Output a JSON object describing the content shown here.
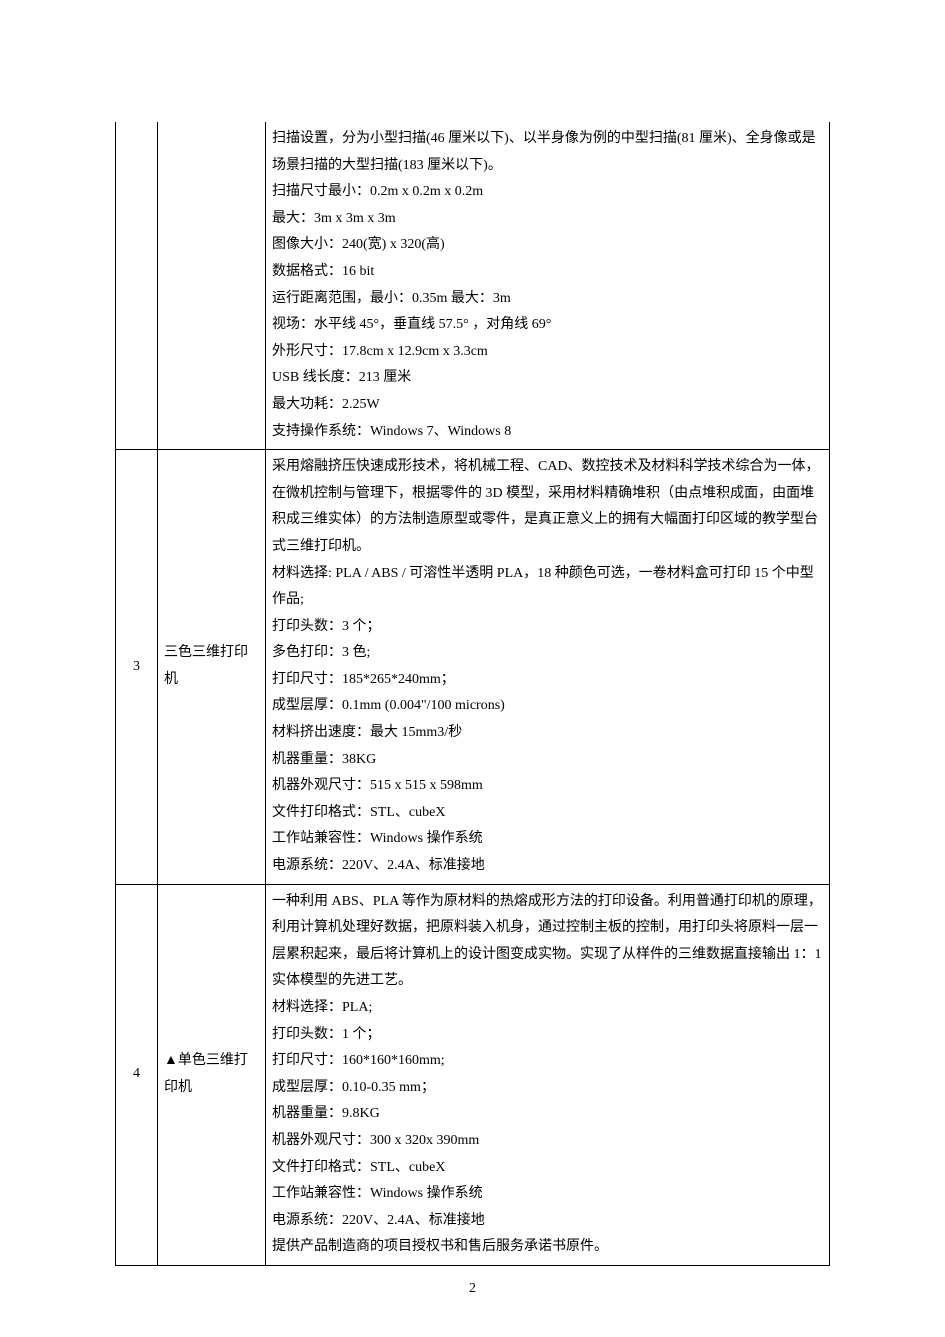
{
  "page_number": "2",
  "table": {
    "columns": {
      "num_width": 42,
      "name_width": 108
    },
    "border_color": "#000000",
    "font_size": 14,
    "line_height": 1.9,
    "text_color": "#000000",
    "background_color": "#ffffff",
    "rows": [
      {
        "num": "",
        "name": "",
        "continued": true,
        "spec": [
          "扫描设置，分为小型扫描(46 厘米以下)、以半身像为例的中型扫描(81 厘米)、全身像或是场景扫描的大型扫描(183 厘米以下)。",
          "扫描尺寸最小：0.2m x 0.2m x 0.2m",
          "最大：3m x 3m x 3m",
          "图像大小：240(宽) x 320(高)",
          "数据格式：16 bit",
          "运行距离范围，最小：0.35m 最大：3m",
          "视场：水平线 45°，垂直线 57.5° ，对角线 69°",
          "外形尺寸：17.8cm x 12.9cm x 3.3cm",
          "USB 线长度：213 厘米",
          "最大功耗：2.25W",
          "支持操作系统：Windows 7、Windows 8"
        ]
      },
      {
        "num": "3",
        "name": "三色三维打印机",
        "continued": false,
        "spec": [
          "采用熔融挤压快速成形技术，将机械工程、CAD、数控技术及材料科学技术综合为一体，在微机控制与管理下，根据零件的 3D 模型，采用材料精确堆积（由点堆积成面，由面堆积成三维实体）的方法制造原型或零件，是真正意义上的拥有大幅面打印区域的教学型台式三维打印机。",
          "材料选择: PLA / ABS /  可溶性半透明 PLA，18 种颜色可选，一卷材料盒可打印 15 个中型作品;",
          "打印头数：3 个；",
          "多色打印：3 色;",
          "打印尺寸：185*265*240mm；",
          "成型层厚：0.1mm   (0.004\"/100 microns)",
          "材料挤出速度：最大 15mm3/秒",
          "机器重量：38KG",
          "机器外观尺寸：515 x 515 x 598mm",
          "文件打印格式：STL、cubeX",
          "工作站兼容性：Windows 操作系统",
          "电源系统：220V、2.4A、标准接地"
        ]
      },
      {
        "num": "4",
        "name": "▲单色三维打印机",
        "continued": false,
        "spec": [
          "一种利用 ABS、PLA 等作为原材料的热熔成形方法的打印设备。利用普通打印机的原理，利用计算机处理好数据，把原料装入机身，通过控制主板的控制，用打印头将原料一层一层累积起来，最后将计算机上的设计图变成实物。实现了从样件的三维数据直接输出 1：1 实体模型的先进工艺。",
          "材料选择：PLA;",
          "打印头数：1 个；",
          "打印尺寸：160*160*160mm;",
          "成型层厚：0.10-0.35 mm；",
          "机器重量：9.8KG",
          "机器外观尺寸：300 x 320x 390mm",
          "文件打印格式：STL、cubeX",
          "工作站兼容性：Windows 操作系统",
          "电源系统：220V、2.4A、标准接地",
          "提供产品制造商的项目授权书和售后服务承诺书原件。"
        ]
      }
    ]
  }
}
